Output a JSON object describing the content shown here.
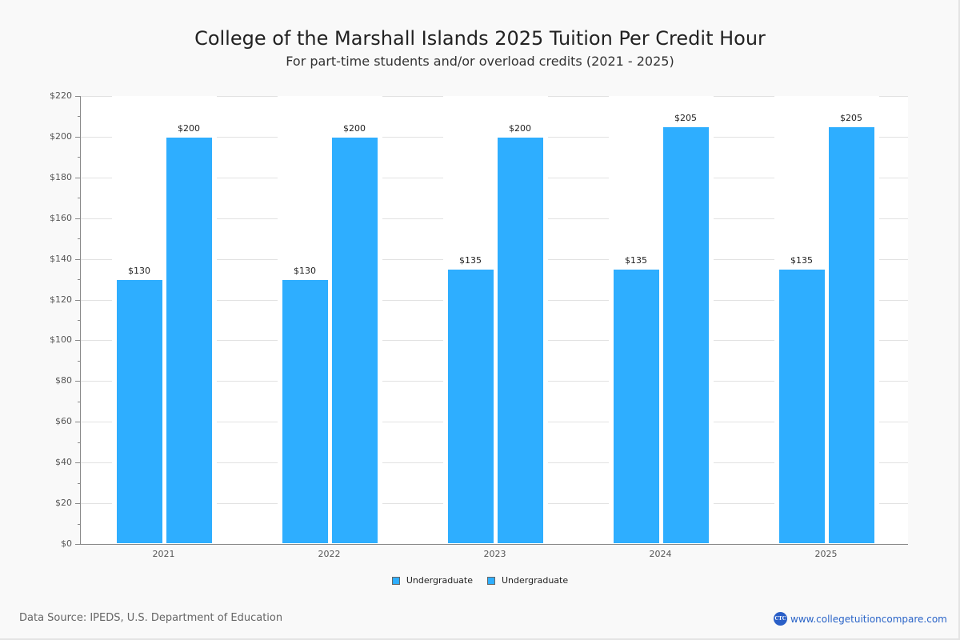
{
  "header": {
    "title": "College of the Marshall Islands 2025 Tuition Per Credit Hour",
    "subtitle": "For part-time students and/or overload credits (2021 - 2025)"
  },
  "footer": {
    "source": "Data Source: IPEDS, U.S. Department of Education",
    "brand_logo": "CTC",
    "brand_url": "www.collegetuitioncompare.com"
  },
  "legend": [
    "Undergraduate",
    "Undergraduate"
  ],
  "colors": {
    "bar": "#2eaeff",
    "brand": "#2a64c8"
  },
  "chart_data": {
    "type": "bar",
    "title": "College of the Marshall Islands 2025 Tuition Per Credit Hour",
    "subtitle": "For part-time students and/or overload credits (2021 - 2025)",
    "categories": [
      "2021",
      "2022",
      "2023",
      "2024",
      "2025"
    ],
    "series": [
      {
        "name": "Undergraduate",
        "values": [
          130,
          130,
          135,
          135,
          135
        ],
        "labels": [
          "$130",
          "$130",
          "$135",
          "$135",
          "$135"
        ]
      },
      {
        "name": "Undergraduate",
        "values": [
          200,
          200,
          200,
          205,
          205
        ],
        "labels": [
          "$200",
          "$200",
          "$200",
          "$205",
          "$205"
        ]
      }
    ],
    "xlabel": "",
    "ylabel": "",
    "ylim": [
      0,
      220
    ],
    "yticks": [
      "$0",
      "$20",
      "$40",
      "$60",
      "$80",
      "$100",
      "$120",
      "$140",
      "$160",
      "$180",
      "$200",
      "$220"
    ],
    "grid": true,
    "legend_position": "bottom"
  }
}
